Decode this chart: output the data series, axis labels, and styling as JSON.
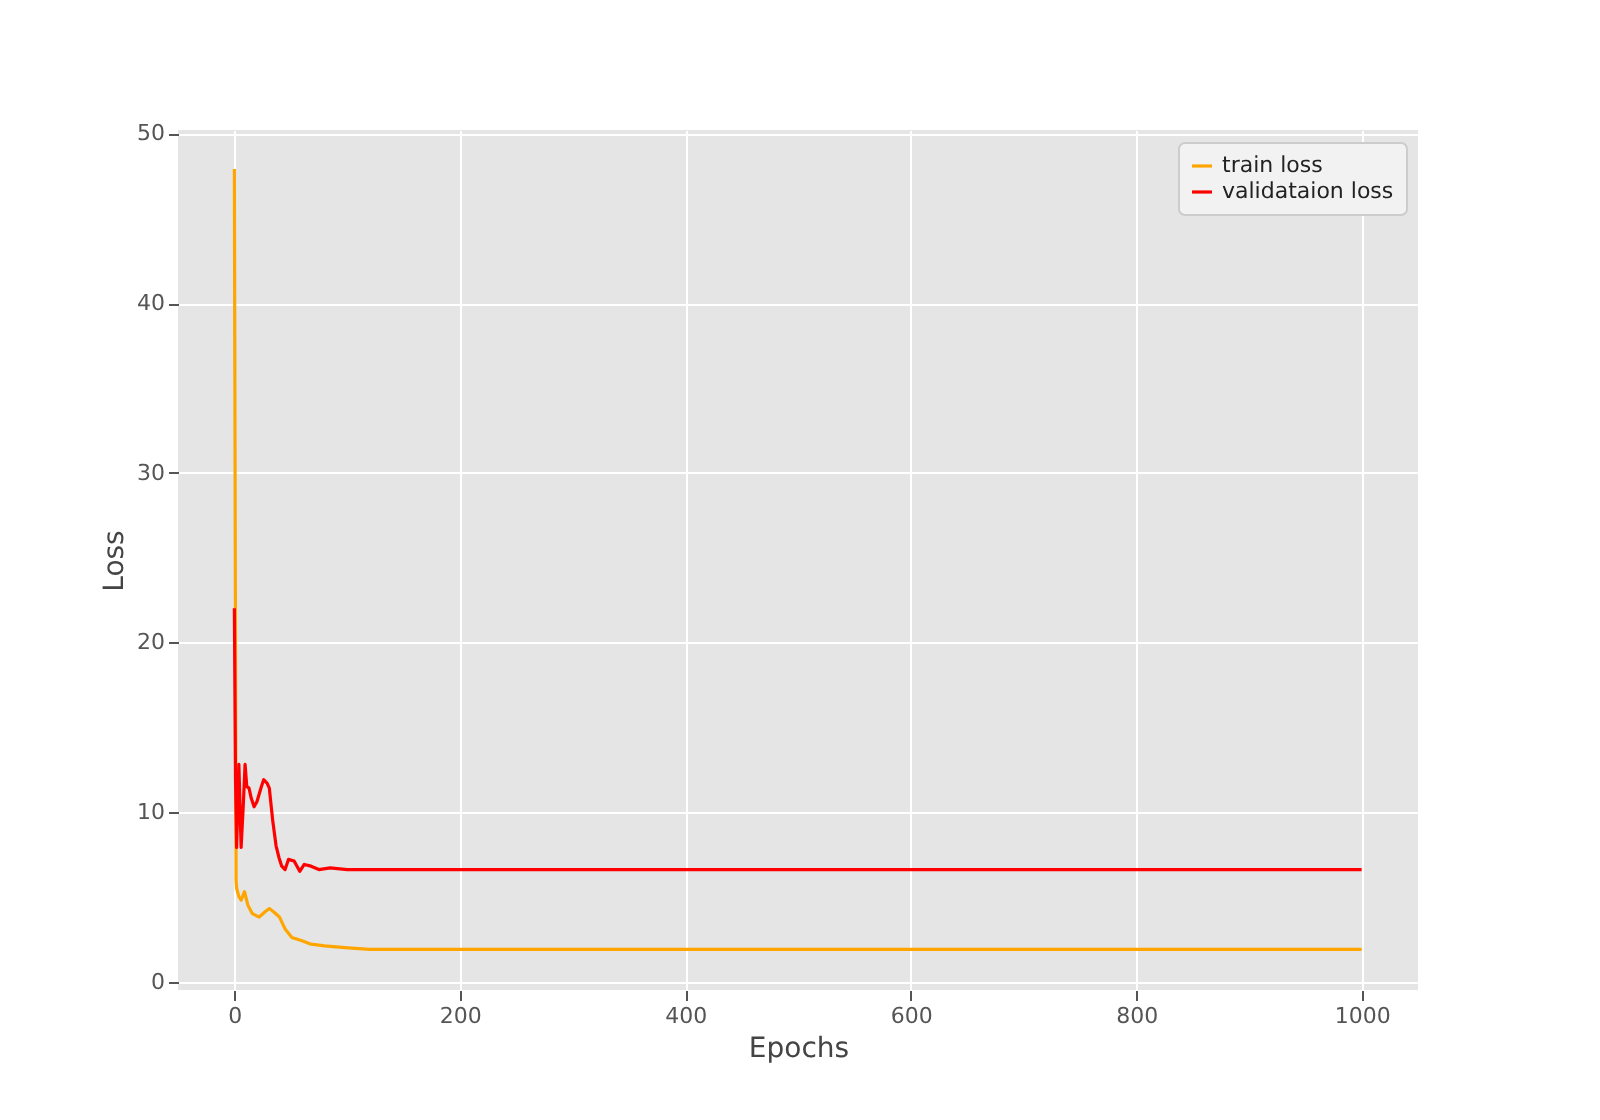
{
  "chart_data": {
    "type": "line",
    "xlabel": "Epochs",
    "ylabel": "Loss",
    "xlim": [
      -50,
      1050
    ],
    "xticks": [
      0,
      200,
      400,
      600,
      800,
      1000
    ],
    "ylim": [
      -0.5,
      50.2
    ],
    "yticks": [
      0,
      10,
      20,
      30,
      40,
      50
    ],
    "grid": true,
    "legend": "top right",
    "series": [
      {
        "name": "train loss",
        "color": "#ffa500",
        "x": [
          0,
          1.5,
          2,
          4,
          6,
          9,
          12,
          16,
          22,
          27,
          31,
          35,
          40,
          45,
          51,
          60,
          68,
          80,
          98,
          120,
          150,
          200,
          300,
          500,
          700,
          1000
        ],
        "values": [
          47.9,
          6.0,
          5.5,
          5.0,
          4.8,
          5.3,
          4.5,
          4.0,
          3.8,
          4.1,
          4.3,
          4.1,
          3.8,
          3.1,
          2.6,
          2.4,
          2.2,
          2.1,
          2.0,
          1.9,
          1.9,
          1.9,
          1.9,
          1.9,
          1.9,
          1.9
        ]
      },
      {
        "name": "validataion loss",
        "color": "#ff0000",
        "x": [
          0,
          1,
          2,
          4,
          6,
          8,
          9.5,
          11,
          13,
          15,
          17.5,
          20,
          24,
          26,
          29,
          31,
          34,
          37,
          39.6,
          42,
          45,
          48,
          53,
          58,
          62,
          68,
          75,
          85,
          100,
          150,
          200,
          400,
          700,
          1000
        ],
        "values": [
          22.0,
          12,
          7.9,
          12.8,
          7.9,
          10.5,
          12.8,
          11.5,
          11.4,
          10.8,
          10.3,
          10.6,
          11.5,
          11.9,
          11.7,
          11.4,
          9.5,
          8.0,
          7.3,
          6.8,
          6.6,
          7.2,
          7.1,
          6.5,
          6.9,
          6.8,
          6.6,
          6.7,
          6.6,
          6.6,
          6.6,
          6.6,
          6.6,
          6.6
        ]
      }
    ]
  }
}
